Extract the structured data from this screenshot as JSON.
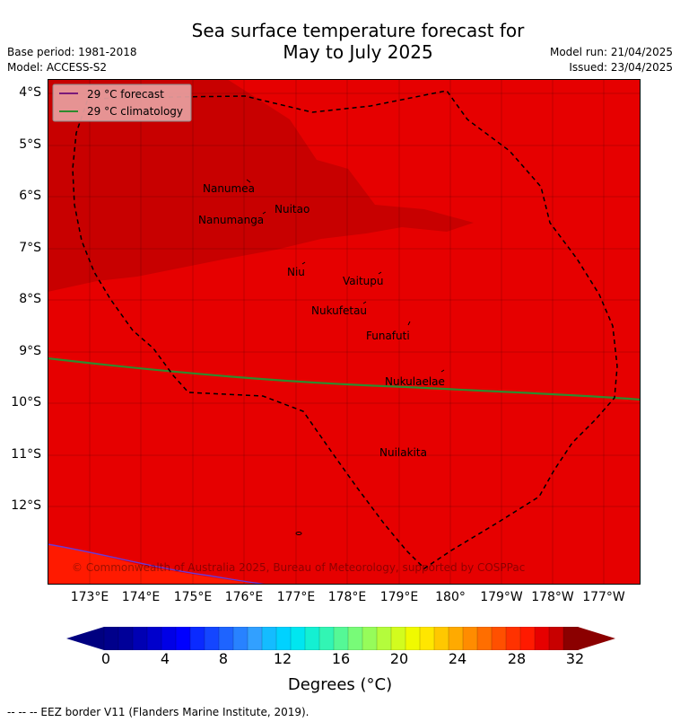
{
  "header": {
    "title_line1": "Sea surface temperature forecast for",
    "title_line2": "May to July 2025",
    "base_period": "Base period: 1981-2018",
    "model": "Model: ACCESS-S2",
    "model_run": "Model run: 21/04/2025",
    "issued": "Issued: 23/04/2025"
  },
  "map": {
    "lat_ticks": [
      "4°S",
      "5°S",
      "6°S",
      "7°S",
      "8°S",
      "9°S",
      "10°S",
      "11°S",
      "12°S"
    ],
    "lon_ticks": [
      "173°E",
      "174°E",
      "175°E",
      "176°E",
      "177°E",
      "178°E",
      "179°E",
      "180°",
      "179°W",
      "178°W",
      "177°W"
    ],
    "islands": [
      "Nanumea",
      "Nuitao",
      "Nanumanga",
      "Niu",
      "Vaitupu",
      "Nukufetau",
      "Funafuti",
      "Nukulaelae",
      "Nuilakita"
    ],
    "legend": {
      "forecast": "29 °C  forecast",
      "climatology": "29 °C  climatology",
      "forecast_color": "#7a1a7a",
      "climatology_color": "#2e8b2e"
    },
    "copyright": "© Commonwealth of Australia 2025, Bureau of Meteorology, supported by COSPPac",
    "colors": {
      "sst_above_29": "#e60000",
      "sst_above_30": "#c80000",
      "sst_28_29": "#ff1a00"
    }
  },
  "colorbar": {
    "tick_labels": [
      "0",
      "4",
      "8",
      "12",
      "16",
      "20",
      "24",
      "28",
      "32"
    ],
    "min": 0,
    "max": 32,
    "step": 1,
    "colors": [
      "#00008b",
      "#000099",
      "#0000b3",
      "#0000cc",
      "#0000e6",
      "#0000ff",
      "#0a2aff",
      "#1446ff",
      "#1e64ff",
      "#2882ff",
      "#32a0ff",
      "#14bcff",
      "#00d2ff",
      "#00e6f0",
      "#14f0d2",
      "#32f5b4",
      "#55f896",
      "#78fb78",
      "#96fc5a",
      "#b4fc3c",
      "#d2fc1e",
      "#f0fa00",
      "#ffe600",
      "#ffc800",
      "#ffaa00",
      "#ff8c00",
      "#ff6e00",
      "#ff5000",
      "#ff3200",
      "#ff1a00",
      "#e60000",
      "#c80000",
      "#8b0000"
    ],
    "under_color": "#000080",
    "over_color": "#8b0000",
    "title": "Degrees (°C)"
  },
  "footer": {
    "eez_note": "--  --  -- EEZ border V11 (Flanders Marine Institute, 2019)."
  }
}
